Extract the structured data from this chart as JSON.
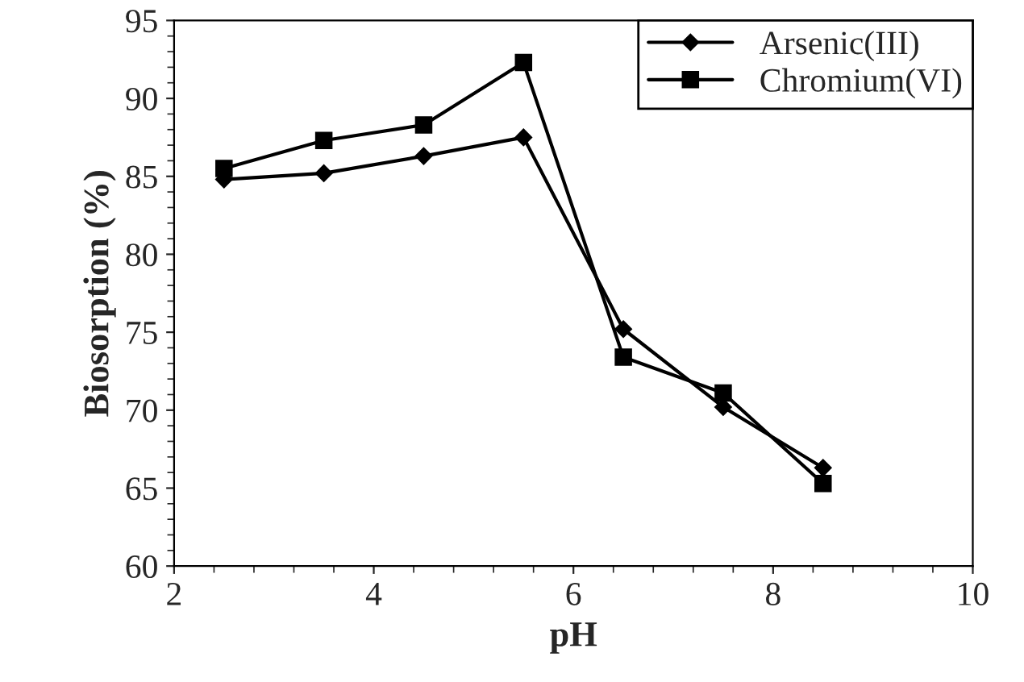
{
  "chart_data": {
    "type": "line",
    "xlabel": "pH",
    "ylabel": "Biosorption (%)",
    "x": [
      2.5,
      3.5,
      4.5,
      5.5,
      6.5,
      7.5,
      8.5
    ],
    "series": [
      {
        "name": "Arsenic(III)",
        "color": "#000000",
        "marker": "diamond",
        "values": [
          84.8,
          85.2,
          86.3,
          87.5,
          75.2,
          70.2,
          66.3
        ]
      },
      {
        "name": "Chromium(VI)",
        "color": "#000000",
        "marker": "square",
        "values": [
          85.5,
          87.3,
          88.3,
          92.3,
          73.4,
          71.1,
          65.3
        ]
      }
    ],
    "xlim": [
      2,
      10
    ],
    "xticks": [
      2,
      4,
      6,
      8,
      10
    ],
    "ylim": [
      60,
      95
    ],
    "yticks": [
      60,
      65,
      70,
      75,
      80,
      85,
      90,
      95
    ],
    "grid": false,
    "legend": "top right",
    "line_style": "solid"
  }
}
